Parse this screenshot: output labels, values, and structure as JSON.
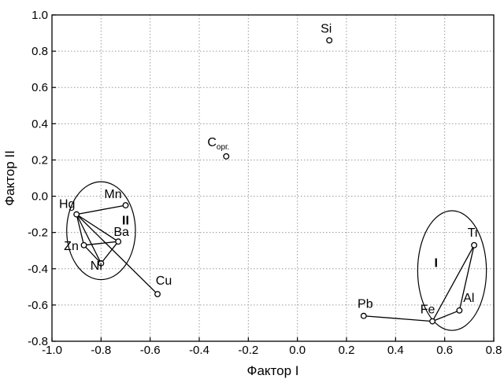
{
  "chart_data": {
    "type": "scatter",
    "xlabel": "Фактор I",
    "ylabel": "Фактор II",
    "xlim": [
      -1.0,
      0.8
    ],
    "ylim": [
      -0.8,
      1.0
    ],
    "x_ticks": [
      "-1.0",
      "-0.8",
      "-0.6",
      "-0.4",
      "-0.2",
      "0.0",
      "0.2",
      "0.4",
      "0.6",
      "0.8"
    ],
    "y_ticks": [
      "1.0",
      "0.8",
      "0.6",
      "0.4",
      "0.2",
      "0.0",
      "-0.2",
      "-0.4",
      "-0.6",
      "-0.8"
    ],
    "grid": true,
    "points": [
      {
        "label": "Si",
        "x": 0.13,
        "y": 0.86
      },
      {
        "label": "C",
        "sub": "орг.",
        "x": -0.29,
        "y": 0.22
      },
      {
        "label": "Hg",
        "x": -0.9,
        "y": -0.1
      },
      {
        "label": "Mn",
        "x": -0.7,
        "y": -0.05
      },
      {
        "label": "Ba",
        "x": -0.73,
        "y": -0.25
      },
      {
        "label": "Zn",
        "x": -0.87,
        "y": -0.27
      },
      {
        "label": "Ni",
        "x": -0.8,
        "y": -0.37
      },
      {
        "label": "Cu",
        "x": -0.57,
        "y": -0.54
      },
      {
        "label": "Pb",
        "x": 0.27,
        "y": -0.66
      },
      {
        "label": "Fe",
        "x": 0.55,
        "y": -0.69
      },
      {
        "label": "Al",
        "x": 0.66,
        "y": -0.63
      },
      {
        "label": "Ti",
        "x": 0.72,
        "y": -0.27
      }
    ],
    "links": [
      [
        "Hg",
        "Mn"
      ],
      [
        "Hg",
        "Ba"
      ],
      [
        "Hg",
        "Zn"
      ],
      [
        "Hg",
        "Ni"
      ],
      [
        "Hg",
        "Cu"
      ],
      [
        "Zn",
        "Ba"
      ],
      [
        "Zn",
        "Ni"
      ],
      [
        "Ni",
        "Ba"
      ],
      [
        "Pb",
        "Fe"
      ],
      [
        "Fe",
        "Ti"
      ],
      [
        "Fe",
        "Al"
      ],
      [
        "Al",
        "Ti"
      ]
    ],
    "clusters": [
      {
        "label": "II",
        "center": [
          -0.8,
          -0.19
        ],
        "radius_x": 0.14,
        "radius_y": 0.27
      },
      {
        "label": "I",
        "center": [
          0.63,
          -0.41
        ],
        "radius_x": 0.14,
        "radius_y": 0.33
      }
    ]
  }
}
